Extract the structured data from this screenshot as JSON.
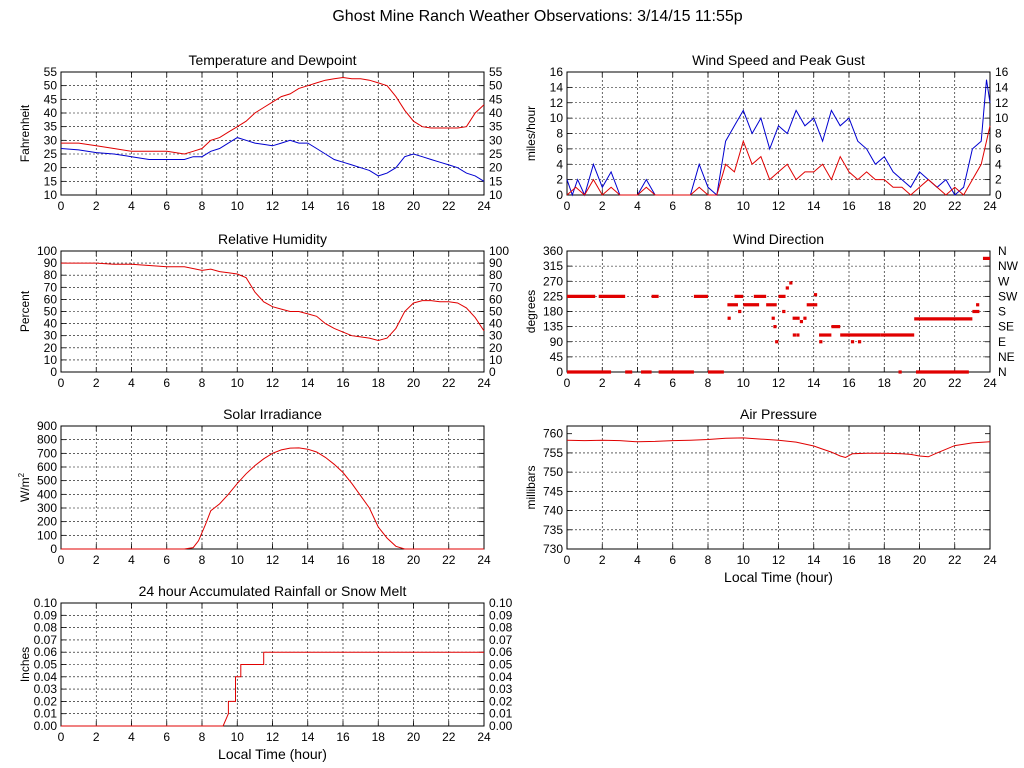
{
  "page_title": "Ghost Mine Ranch Weather Observations: 3/14/15 11:55p",
  "colors": {
    "series_red": "#e00000",
    "series_blue": "#0000d0",
    "grid": "#000000"
  },
  "x_axis": {
    "label": "Local Time (hour)",
    "ticks": [
      "0",
      "2",
      "4",
      "6",
      "8",
      "10",
      "12",
      "14",
      "16",
      "18",
      "20",
      "22",
      "24"
    ]
  },
  "chart_data": [
    {
      "id": "temperature",
      "type": "line",
      "title": "Temperature and Dewpoint",
      "ylabel": "Fahrenheit",
      "xlabel": "",
      "xlim": [
        0,
        24
      ],
      "ylim": [
        10,
        55
      ],
      "yticks": [
        10,
        15,
        20,
        25,
        30,
        35,
        40,
        45,
        50,
        55
      ],
      "ytick_labels": [
        "10",
        "15",
        "20",
        "25",
        "30",
        "35",
        "40",
        "45",
        "50",
        "55"
      ],
      "right_ticks": true,
      "series": [
        {
          "color": "red",
          "x": [
            0,
            1,
            2,
            3,
            4,
            5,
            6,
            7,
            7.5,
            8,
            8.5,
            9,
            9.5,
            10,
            10.5,
            11,
            11.5,
            12,
            12.5,
            13,
            13.5,
            14,
            14.5,
            15,
            15.5,
            16,
            16.5,
            17,
            17.5,
            18,
            18.5,
            19,
            19.5,
            20,
            20.5,
            21,
            21.5,
            22,
            22.5,
            23,
            23.5,
            24
          ],
          "y": [
            29,
            29,
            28,
            27,
            26,
            26,
            26,
            25,
            26,
            27,
            30,
            31,
            33,
            35,
            37,
            40,
            42,
            44,
            46,
            47,
            49,
            50,
            51,
            52,
            52.5,
            53,
            52.5,
            52.5,
            52,
            51,
            50,
            46,
            41,
            37,
            35,
            34.5,
            34.5,
            34.5,
            34.5,
            35,
            40,
            43
          ]
        },
        {
          "color": "blue",
          "x": [
            0,
            1,
            2,
            3,
            4,
            5,
            6,
            7,
            7.5,
            8,
            8.5,
            9,
            9.5,
            10,
            10.5,
            11,
            11.5,
            12,
            12.5,
            13,
            13.5,
            14,
            14.5,
            15,
            15.5,
            16,
            16.5,
            17,
            17.5,
            18,
            18.5,
            19,
            19.5,
            20,
            20.5,
            21,
            21.5,
            22,
            22.5,
            23,
            23.5,
            24
          ],
          "y": [
            27,
            26.5,
            25.5,
            25,
            24,
            23,
            23,
            23,
            24,
            24,
            26,
            27,
            29,
            31,
            30,
            29,
            28.5,
            28,
            29,
            30,
            29,
            29,
            27,
            25,
            23,
            22,
            21,
            20,
            19,
            17,
            18,
            20,
            24,
            25,
            24,
            23,
            22,
            21,
            20,
            18,
            17,
            15
          ]
        }
      ]
    },
    {
      "id": "wind_speed",
      "type": "line",
      "title": "Wind Speed and Peak Gust",
      "ylabel": "miles/hour",
      "xlabel": "",
      "xlim": [
        0,
        24
      ],
      "ylim": [
        0,
        16
      ],
      "yticks": [
        0,
        2,
        4,
        6,
        8,
        10,
        12,
        14,
        16
      ],
      "ytick_labels": [
        "0",
        "2",
        "4",
        "6",
        "8",
        "10",
        "12",
        "14",
        "16"
      ],
      "right_ticks": true,
      "series": [
        {
          "color": "blue",
          "x": [
            0,
            0.3,
            0.6,
            1,
            1.5,
            2,
            2.5,
            3,
            3.5,
            4,
            4.5,
            5,
            5.5,
            6,
            6.5,
            7,
            7.5,
            8,
            8.5,
            9,
            9.5,
            10,
            10.5,
            11,
            11.5,
            12,
            12.5,
            13,
            13.5,
            14,
            14.5,
            15,
            15.5,
            16,
            16.5,
            17,
            17.5,
            18,
            18.5,
            19,
            19.5,
            20,
            20.5,
            21,
            21.5,
            22,
            22.5,
            23,
            23.5,
            23.8,
            24
          ],
          "y": [
            2,
            0,
            2,
            0,
            4,
            1,
            3,
            0,
            0,
            0,
            2,
            0,
            0,
            0,
            0,
            0,
            4,
            1,
            0,
            7,
            9,
            11,
            8,
            10,
            6,
            9,
            8,
            11,
            9,
            10,
            7,
            11,
            9,
            10,
            7,
            6,
            4,
            5,
            3,
            2,
            1,
            3,
            2,
            1,
            2,
            0,
            1,
            6,
            7,
            15,
            12
          ]
        },
        {
          "color": "red",
          "x": [
            0,
            0.5,
            1,
            1.5,
            2,
            2.5,
            3,
            3.5,
            4,
            4.5,
            5,
            5.5,
            6,
            6.5,
            7,
            7.5,
            8,
            8.5,
            9,
            9.5,
            10,
            10.5,
            11,
            11.5,
            12,
            12.5,
            13,
            13.5,
            14,
            14.5,
            15,
            15.5,
            16,
            16.5,
            17,
            17.5,
            18,
            18.5,
            19,
            19.5,
            20,
            20.5,
            21,
            21.5,
            22,
            22.5,
            23,
            23.5,
            24
          ],
          "y": [
            0,
            1,
            0,
            2,
            0,
            1,
            0,
            0,
            0,
            1,
            0,
            0,
            0,
            0,
            0,
            1,
            0,
            0,
            4,
            3,
            7,
            4,
            5,
            2,
            3,
            4,
            2,
            3,
            3,
            4,
            2,
            5,
            3,
            2,
            3,
            2,
            2,
            1,
            1,
            0,
            1,
            2,
            1,
            0,
            1,
            0,
            2,
            4,
            9
          ]
        }
      ]
    },
    {
      "id": "humidity",
      "type": "line",
      "title": "Relative Humidity",
      "ylabel": "Percent",
      "xlabel": "",
      "xlim": [
        0,
        24
      ],
      "ylim": [
        0,
        100
      ],
      "yticks": [
        0,
        10,
        20,
        30,
        40,
        50,
        60,
        70,
        80,
        90,
        100
      ],
      "ytick_labels": [
        "0",
        "10",
        "20",
        "30",
        "40",
        "50",
        "60",
        "70",
        "80",
        "90",
        "100"
      ],
      "right_ticks": true,
      "series": [
        {
          "color": "red",
          "x": [
            0,
            1,
            2,
            3,
            4,
            5,
            6,
            7,
            8,
            8.5,
            9,
            9.5,
            10,
            10.5,
            11,
            11.5,
            12,
            12.5,
            13,
            13.5,
            14,
            14.5,
            15,
            15.5,
            16,
            16.5,
            17,
            17.5,
            18,
            18.5,
            19,
            19.5,
            20,
            20.5,
            21,
            21.5,
            22,
            22.5,
            23,
            23.5,
            24
          ],
          "y": [
            90,
            90,
            90,
            89,
            89,
            88,
            87,
            87,
            84,
            85,
            83,
            82,
            81,
            78,
            66,
            58,
            54,
            52,
            50,
            50,
            48,
            46,
            40,
            36,
            33,
            30,
            29,
            28,
            26,
            28,
            36,
            50,
            57,
            59,
            59,
            58,
            58,
            57,
            53,
            45,
            34
          ]
        }
      ]
    },
    {
      "id": "wind_direction",
      "type": "scatter",
      "title": "Wind Direction",
      "ylabel": "degrees",
      "xlabel": "",
      "xlim": [
        0,
        24
      ],
      "ylim": [
        0,
        360
      ],
      "yticks": [
        0,
        45,
        90,
        135,
        180,
        225,
        270,
        315,
        360
      ],
      "ytick_labels": [
        "0",
        "45",
        "90",
        "135",
        "180",
        "225",
        "270",
        "315",
        "360"
      ],
      "right_labels": [
        "N",
        "NE",
        "E",
        "SE",
        "S",
        "SW",
        "W",
        "NW",
        "N"
      ],
      "segments": [
        {
          "x0": 0,
          "x1": 2.5,
          "y": 0
        },
        {
          "x0": 0,
          "x1": 1.6,
          "y": 225
        },
        {
          "x0": 1.8,
          "x1": 3.3,
          "y": 225
        },
        {
          "x0": 3.3,
          "x1": 3.7,
          "y": 0
        },
        {
          "x0": 4.2,
          "x1": 4.8,
          "y": 0
        },
        {
          "x0": 4.8,
          "x1": 5.2,
          "y": 225
        },
        {
          "x0": 5.2,
          "x1": 7.2,
          "y": 0
        },
        {
          "x0": 7.2,
          "x1": 8,
          "y": 225
        },
        {
          "x0": 8,
          "x1": 8.9,
          "y": 0
        },
        {
          "x0": 9.1,
          "x1": 9.7,
          "y": 200
        },
        {
          "x0": 9.5,
          "x1": 10,
          "y": 225
        },
        {
          "x0": 10,
          "x1": 10.9,
          "y": 200
        },
        {
          "x0": 10.6,
          "x1": 11.3,
          "y": 225
        },
        {
          "x0": 11.3,
          "x1": 11.9,
          "y": 200
        },
        {
          "x0": 12,
          "x1": 12.4,
          "y": 225
        },
        {
          "x0": 12.8,
          "x1": 13.2,
          "y": 160
        },
        {
          "x0": 13.6,
          "x1": 14.2,
          "y": 200
        },
        {
          "x0": 14.3,
          "x1": 15,
          "y": 110
        },
        {
          "x0": 15,
          "x1": 15.5,
          "y": 135
        },
        {
          "x0": 15.5,
          "x1": 17.8,
          "y": 110
        },
        {
          "x0": 17.8,
          "x1": 19.7,
          "y": 110
        },
        {
          "x0": 19.7,
          "x1": 23,
          "y": 158
        },
        {
          "x0": 19.8,
          "x1": 22.8,
          "y": 0
        },
        {
          "x0": 23,
          "x1": 23.4,
          "y": 180
        },
        {
          "x0": 23.6,
          "x1": 24,
          "y": 338
        }
      ],
      "points": [
        {
          "x": 9.2,
          "y": 160
        },
        {
          "x": 9.8,
          "y": 180
        },
        {
          "x": 11.7,
          "y": 160
        },
        {
          "x": 11.8,
          "y": 135
        },
        {
          "x": 11.9,
          "y": 90
        },
        {
          "x": 12.3,
          "y": 180
        },
        {
          "x": 12.5,
          "y": 250
        },
        {
          "x": 12.7,
          "y": 265
        },
        {
          "x": 12.9,
          "y": 110
        },
        {
          "x": 13.1,
          "y": 110
        },
        {
          "x": 13.3,
          "y": 150
        },
        {
          "x": 13.5,
          "y": 160
        },
        {
          "x": 14.1,
          "y": 230
        },
        {
          "x": 14.4,
          "y": 90
        },
        {
          "x": 16.2,
          "y": 90
        },
        {
          "x": 16.6,
          "y": 90
        },
        {
          "x": 18.9,
          "y": 0
        },
        {
          "x": 23.3,
          "y": 200
        }
      ]
    },
    {
      "id": "solar",
      "type": "line",
      "title": "Solar Irradiance",
      "ylabel": "W/m",
      "ylabel_sup": "2",
      "xlabel": "",
      "xlim": [
        0,
        24
      ],
      "ylim": [
        0,
        900
      ],
      "yticks": [
        0,
        100,
        200,
        300,
        400,
        500,
        600,
        700,
        800,
        900
      ],
      "ytick_labels": [
        "0",
        "100",
        "200",
        "300",
        "400",
        "500",
        "600",
        "700",
        "800",
        "900"
      ],
      "right_ticks": false,
      "series": [
        {
          "color": "red",
          "x": [
            0,
            6,
            7,
            7.5,
            7.8,
            8.2,
            8.5,
            9,
            9.5,
            10,
            10.5,
            11,
            11.5,
            12,
            12.5,
            13,
            13.5,
            14,
            14.5,
            15,
            15.5,
            16,
            16.5,
            17,
            17.5,
            18,
            18.5,
            19,
            19.5,
            20,
            24
          ],
          "y": [
            0,
            0,
            0,
            10,
            60,
            180,
            280,
            330,
            400,
            480,
            550,
            610,
            660,
            700,
            725,
            738,
            740,
            730,
            710,
            670,
            620,
            560,
            480,
            390,
            300,
            160,
            80,
            20,
            0,
            0,
            0
          ]
        }
      ]
    },
    {
      "id": "pressure",
      "type": "line",
      "title": "Air Pressure",
      "ylabel": "millibars",
      "xlabel": "Local Time (hour)",
      "xlim": [
        0,
        24
      ],
      "ylim": [
        730,
        762
      ],
      "yticks": [
        730,
        735,
        740,
        745,
        750,
        755,
        760
      ],
      "ytick_labels": [
        "730",
        "735",
        "740",
        "745",
        "750",
        "755",
        "760"
      ],
      "right_ticks": false,
      "series": [
        {
          "color": "red",
          "x": [
            0,
            1,
            2,
            3,
            4,
            5,
            6,
            7,
            8,
            9,
            10,
            11,
            12,
            13,
            14,
            14.5,
            15,
            15.5,
            15.8,
            16.2,
            17,
            18,
            19,
            19.5,
            20,
            20.5,
            21,
            22,
            23,
            24
          ],
          "y": [
            758.3,
            758.2,
            758.3,
            758.2,
            757.9,
            758.0,
            758.2,
            758.3,
            758.5,
            758.8,
            758.9,
            758.6,
            758.3,
            757.8,
            756.8,
            756.0,
            755.2,
            754.2,
            753.8,
            754.8,
            754.9,
            754.9,
            754.8,
            754.6,
            754.2,
            754.0,
            755.0,
            756.9,
            757.6,
            757.9
          ]
        }
      ]
    },
    {
      "id": "rainfall",
      "type": "line",
      "title": "24 hour Accumulated Rainfall or Snow Melt",
      "ylabel": "Inches",
      "xlabel": "Local Time (hour)",
      "xlim": [
        0,
        24
      ],
      "ylim": [
        0,
        0.1
      ],
      "yticks": [
        0,
        0.01,
        0.02,
        0.03,
        0.04,
        0.05,
        0.06,
        0.07,
        0.08,
        0.09,
        0.1
      ],
      "ytick_labels": [
        "0.00",
        "0.01",
        "0.02",
        "0.03",
        "0.04",
        "0.05",
        "0.06",
        "0.07",
        "0.08",
        "0.09",
        "0.10"
      ],
      "right_ticks": true,
      "series": [
        {
          "color": "red",
          "x": [
            0,
            9.2,
            9.5,
            9.5,
            9.9,
            9.9,
            10.2,
            10.2,
            10.5,
            10.5,
            11.5,
            11.5,
            24
          ],
          "y": [
            0,
            0,
            0.01,
            0.02,
            0.02,
            0.04,
            0.04,
            0.05,
            0.05,
            0.05,
            0.05,
            0.06,
            0.06
          ]
        }
      ]
    }
  ]
}
